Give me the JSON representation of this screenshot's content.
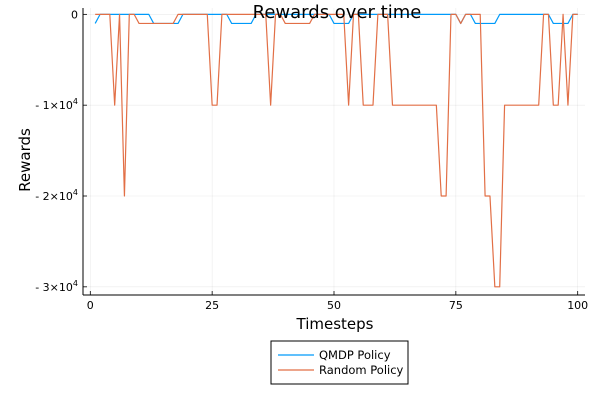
{
  "chart_data": {
    "type": "line",
    "title": "Rewards over time",
    "xlabel": "Timesteps",
    "ylabel": "Rewards",
    "xlim": [
      -1.5,
      101.5
    ],
    "ylim": [
      -30900,
      700
    ],
    "x_ticks": [
      {
        "value": 0,
        "label": "0"
      },
      {
        "value": 25,
        "label": "25"
      },
      {
        "value": 50,
        "label": "50"
      },
      {
        "value": 75,
        "label": "75"
      },
      {
        "value": 100,
        "label": "100"
      }
    ],
    "y_ticks": [
      {
        "value": 0,
        "label": "0",
        "sup": ""
      },
      {
        "value": -10000,
        "label": "- 1×10",
        "sup": "4"
      },
      {
        "value": -20000,
        "label": "- 2×10",
        "sup": "4"
      },
      {
        "value": -30000,
        "label": "- 3×10",
        "sup": "4"
      }
    ],
    "grid": true,
    "legend_position": "bottom-center",
    "x": [
      1,
      2,
      3,
      4,
      5,
      6,
      7,
      8,
      9,
      10,
      11,
      12,
      13,
      14,
      15,
      16,
      17,
      18,
      19,
      20,
      21,
      22,
      23,
      24,
      25,
      26,
      27,
      28,
      29,
      30,
      31,
      32,
      33,
      34,
      35,
      36,
      37,
      38,
      39,
      40,
      41,
      42,
      43,
      44,
      45,
      46,
      47,
      48,
      49,
      50,
      51,
      52,
      53,
      54,
      55,
      56,
      57,
      58,
      59,
      60,
      61,
      62,
      63,
      64,
      65,
      66,
      67,
      68,
      69,
      70,
      71,
      72,
      73,
      74,
      75,
      76,
      77,
      78,
      79,
      80,
      81,
      82,
      83,
      84,
      85,
      86,
      87,
      88,
      89,
      90,
      91,
      92,
      93,
      94,
      95,
      96,
      97,
      98,
      99,
      100
    ],
    "series": [
      {
        "name": "QMDP Policy",
        "color": "#009AFA",
        "values": [
          -1000,
          0,
          0,
          0,
          0,
          0,
          0,
          0,
          0,
          0,
          0,
          0,
          -1000,
          -1000,
          -1000,
          -1000,
          -1000,
          -1000,
          0,
          0,
          0,
          0,
          0,
          0,
          0,
          0,
          0,
          0,
          -1000,
          -1000,
          -1000,
          -1000,
          -1000,
          0,
          0,
          0,
          0,
          0,
          0,
          0,
          0,
          0,
          0,
          0,
          0,
          0,
          0,
          0,
          0,
          -1000,
          -1000,
          -1000,
          -1000,
          0,
          0,
          0,
          0,
          0,
          0,
          0,
          0,
          0,
          0,
          0,
          0,
          0,
          0,
          0,
          0,
          0,
          0,
          0,
          0,
          0,
          0,
          -1000,
          0,
          0,
          -1000,
          -1000,
          -1000,
          -1000,
          -1000,
          0,
          0,
          0,
          0,
          0,
          0,
          0,
          0,
          0,
          0,
          0,
          -1000,
          -1000,
          -1000,
          -1000,
          0,
          0
        ]
      },
      {
        "name": "Random Policy",
        "color": "#E26F46",
        "values": [
          0,
          0,
          0,
          0,
          -10000,
          0,
          -20000,
          0,
          0,
          -1000,
          -1000,
          -1000,
          -1000,
          -1000,
          -1000,
          -1000,
          -1000,
          0,
          0,
          0,
          0,
          0,
          0,
          0,
          -10000,
          -10000,
          0,
          0,
          0,
          0,
          0,
          0,
          0,
          0,
          0,
          0,
          -10000,
          0,
          0,
          -1000,
          -1000,
          -1000,
          -1000,
          -1000,
          -1000,
          0,
          0,
          0,
          0,
          0,
          0,
          0,
          -10000,
          0,
          0,
          -10000,
          -10000,
          -10000,
          0,
          0,
          0,
          -10000,
          -10000,
          -10000,
          -10000,
          -10000,
          -10000,
          -10000,
          -10000,
          -10000,
          -10000,
          -20000,
          -20000,
          0,
          0,
          -1000,
          0,
          0,
          0,
          0,
          -20000,
          -20000,
          -30000,
          -30000,
          -10000,
          -10000,
          -10000,
          -10000,
          -10000,
          -10000,
          -10000,
          -10000,
          0,
          0,
          -10000,
          -10000,
          0,
          -10000,
          0,
          0
        ]
      }
    ]
  }
}
